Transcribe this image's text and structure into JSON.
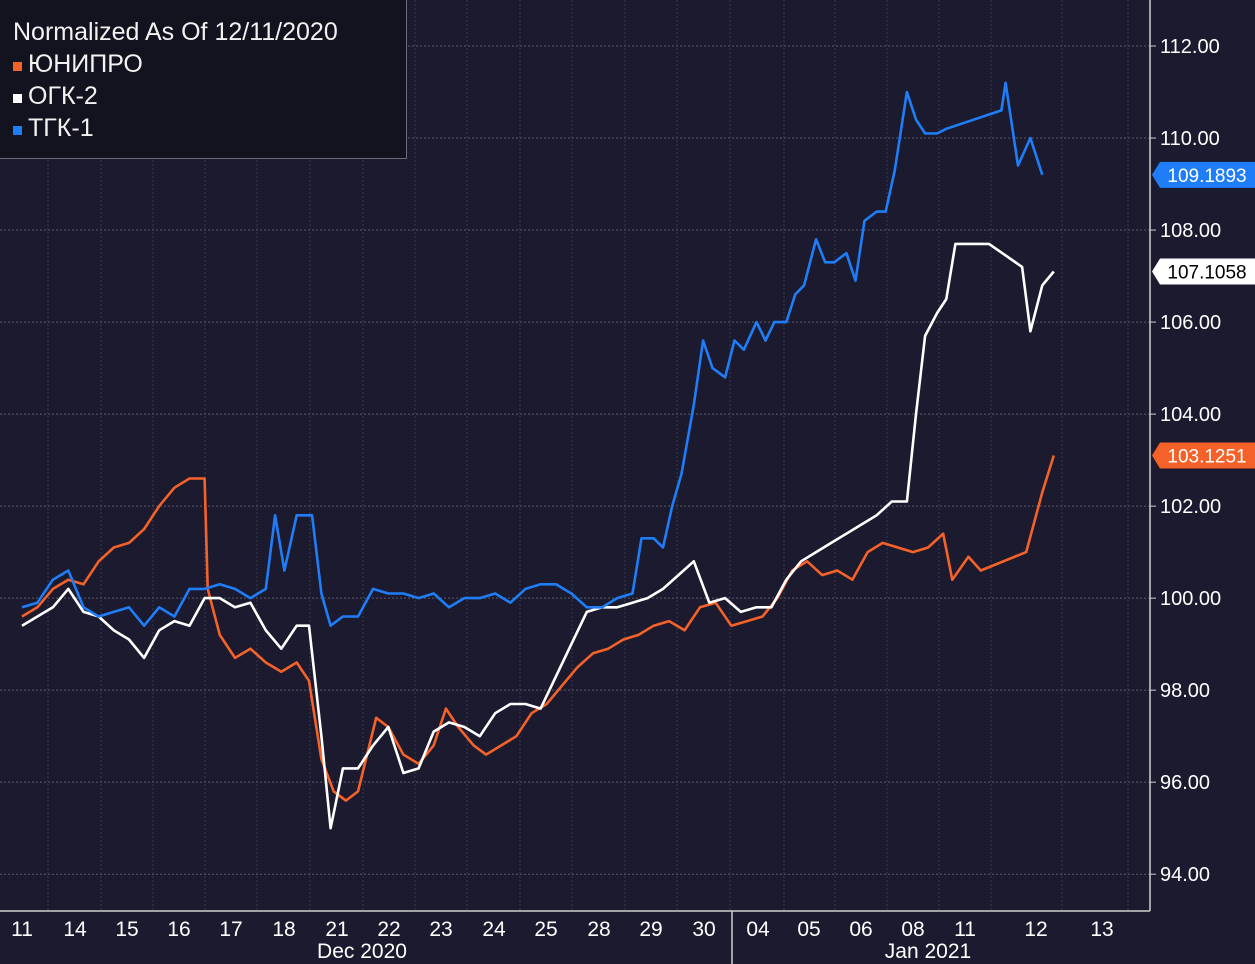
{
  "chart_data": {
    "type": "line",
    "title": "Normalized As Of 12/11/2020",
    "ylim": [
      93.2,
      113.0
    ],
    "yticks": [
      "94.00",
      "96.00",
      "98.00",
      "100.00",
      "102.00",
      "104.00",
      "106.00",
      "108.00",
      "110.00",
      "112.00"
    ],
    "ytick_values": [
      94,
      96,
      98,
      100,
      102,
      104,
      106,
      108,
      110,
      112
    ],
    "xticks": [
      "11",
      "14",
      "15",
      "16",
      "17",
      "18",
      "21",
      "22",
      "23",
      "24",
      "25",
      "28",
      "29",
      "30",
      "04",
      "05",
      "06",
      "08",
      "11",
      "12",
      "13"
    ],
    "month_labels": [
      "Dec 2020",
      "Jan 2021"
    ],
    "grid": true,
    "legend_position": "top-left",
    "series": [
      {
        "name": "ЮНИПРО",
        "color": "#f4622a",
        "last_label": "103.1251",
        "values": [
          [
            0,
            99.6
          ],
          [
            0.5,
            99.8
          ],
          [
            1,
            100.2
          ],
          [
            1.5,
            100.4
          ],
          [
            2,
            100.3
          ],
          [
            2.5,
            100.8
          ],
          [
            3,
            101.1
          ],
          [
            3.5,
            101.2
          ],
          [
            4,
            101.5
          ],
          [
            4.5,
            102.0
          ],
          [
            5,
            102.4
          ],
          [
            5.5,
            102.6
          ],
          [
            6,
            102.6
          ],
          [
            6.1,
            100.2
          ],
          [
            6.5,
            99.2
          ],
          [
            7,
            98.7
          ],
          [
            7.5,
            98.9
          ],
          [
            8,
            98.6
          ],
          [
            8.5,
            98.4
          ],
          [
            9,
            98.6
          ],
          [
            9.4,
            98.2
          ],
          [
            9.8,
            96.5
          ],
          [
            10.2,
            95.8
          ],
          [
            10.6,
            95.6
          ],
          [
            11,
            95.8
          ],
          [
            11.3,
            96.6
          ],
          [
            11.6,
            97.4
          ],
          [
            12,
            97.2
          ],
          [
            12.5,
            96.6
          ],
          [
            13,
            96.4
          ],
          [
            13.5,
            96.8
          ],
          [
            13.9,
            97.6
          ],
          [
            14.3,
            97.2
          ],
          [
            14.8,
            96.8
          ],
          [
            15.2,
            96.6
          ],
          [
            15.7,
            96.8
          ],
          [
            16.2,
            97.0
          ],
          [
            16.7,
            97.5
          ],
          [
            17.2,
            97.7
          ],
          [
            17.7,
            98.1
          ],
          [
            18.2,
            98.5
          ],
          [
            18.7,
            98.8
          ],
          [
            19.2,
            98.9
          ],
          [
            19.7,
            99.1
          ],
          [
            20.2,
            99.2
          ],
          [
            20.7,
            99.4
          ],
          [
            21.2,
            99.5
          ],
          [
            21.7,
            99.3
          ],
          [
            22.2,
            99.8
          ],
          [
            22.7,
            99.9
          ],
          [
            23.2,
            99.4
          ],
          [
            23.7,
            99.5
          ],
          [
            24.2,
            99.6
          ],
          [
            24.7,
            100.0
          ],
          [
            25.2,
            100.6
          ],
          [
            25.7,
            100.8
          ],
          [
            26.2,
            100.5
          ],
          [
            26.7,
            100.6
          ],
          [
            27.2,
            100.4
          ],
          [
            27.7,
            101.0
          ],
          [
            28.2,
            101.2
          ],
          [
            28.7,
            101.1
          ],
          [
            29.2,
            101.0
          ],
          [
            29.7,
            101.1
          ],
          [
            30.2,
            101.4
          ],
          [
            30.5,
            100.4
          ],
          [
            31,
            100.9
          ],
          [
            31.3,
            100.6
          ],
          [
            32.4,
            101.0
          ],
          [
            32.8,
            102.3
          ],
          [
            33.1,
            103.1
          ]
        ]
      },
      {
        "name": "ОГК-2",
        "color": "#ffffff",
        "last_label": "107.1058",
        "values": [
          [
            0,
            99.4
          ],
          [
            0.5,
            99.6
          ],
          [
            1,
            99.8
          ],
          [
            1.5,
            100.2
          ],
          [
            2,
            99.7
          ],
          [
            2.5,
            99.6
          ],
          [
            3,
            99.3
          ],
          [
            3.5,
            99.1
          ],
          [
            4,
            98.7
          ],
          [
            4.5,
            99.3
          ],
          [
            5,
            99.5
          ],
          [
            5.5,
            99.4
          ],
          [
            6,
            100.0
          ],
          [
            6.5,
            100.0
          ],
          [
            7,
            99.8
          ],
          [
            7.5,
            99.9
          ],
          [
            8,
            99.3
          ],
          [
            8.5,
            98.9
          ],
          [
            9,
            99.4
          ],
          [
            9.4,
            99.4
          ],
          [
            9.8,
            97.0
          ],
          [
            10.1,
            95.0
          ],
          [
            10.5,
            96.3
          ],
          [
            11,
            96.3
          ],
          [
            11.5,
            96.8
          ],
          [
            12,
            97.2
          ],
          [
            12.5,
            96.2
          ],
          [
            13,
            96.3
          ],
          [
            13.5,
            97.1
          ],
          [
            14,
            97.3
          ],
          [
            14.5,
            97.2
          ],
          [
            15,
            97.0
          ],
          [
            15.5,
            97.5
          ],
          [
            16,
            97.7
          ],
          [
            16.5,
            97.7
          ],
          [
            17,
            97.6
          ],
          [
            17.5,
            98.3
          ],
          [
            18,
            99.0
          ],
          [
            18.5,
            99.7
          ],
          [
            19,
            99.8
          ],
          [
            19.5,
            99.8
          ],
          [
            20,
            99.9
          ],
          [
            20.5,
            100.0
          ],
          [
            21,
            100.2
          ],
          [
            21.5,
            100.5
          ],
          [
            22,
            100.8
          ],
          [
            22.5,
            99.9
          ],
          [
            23,
            100.0
          ],
          [
            23.5,
            99.7
          ],
          [
            24,
            99.8
          ],
          [
            24.5,
            99.8
          ],
          [
            25,
            100.4
          ],
          [
            25.5,
            100.8
          ],
          [
            26,
            101.0
          ],
          [
            26.5,
            101.2
          ],
          [
            27,
            101.4
          ],
          [
            27.5,
            101.6
          ],
          [
            28,
            101.8
          ],
          [
            28.5,
            102.1
          ],
          [
            29,
            102.1
          ],
          [
            29.3,
            104.0
          ],
          [
            29.6,
            105.7
          ],
          [
            30,
            106.2
          ],
          [
            30.3,
            106.5
          ],
          [
            30.6,
            107.7
          ],
          [
            31.5,
            107.7
          ],
          [
            32.3,
            107.2
          ],
          [
            32.5,
            105.8
          ],
          [
            32.8,
            106.8
          ],
          [
            33.1,
            107.1
          ]
        ]
      },
      {
        "name": "ТГК-1",
        "color": "#1f7ef7",
        "last_label": "109.1893",
        "values": [
          [
            0,
            99.8
          ],
          [
            0.5,
            99.9
          ],
          [
            1,
            100.4
          ],
          [
            1.5,
            100.6
          ],
          [
            2,
            99.8
          ],
          [
            2.5,
            99.6
          ],
          [
            3,
            99.7
          ],
          [
            3.5,
            99.8
          ],
          [
            4,
            99.4
          ],
          [
            4.5,
            99.8
          ],
          [
            5,
            99.6
          ],
          [
            5.5,
            100.2
          ],
          [
            6,
            100.2
          ],
          [
            6.5,
            100.3
          ],
          [
            7,
            100.2
          ],
          [
            7.5,
            100.0
          ],
          [
            8,
            100.2
          ],
          [
            8.3,
            101.8
          ],
          [
            8.6,
            100.6
          ],
          [
            9,
            101.8
          ],
          [
            9.5,
            101.8
          ],
          [
            9.8,
            100.1
          ],
          [
            10.1,
            99.4
          ],
          [
            10.5,
            99.6
          ],
          [
            11,
            99.6
          ],
          [
            11.5,
            100.2
          ],
          [
            12,
            100.1
          ],
          [
            12.5,
            100.1
          ],
          [
            13,
            100.0
          ],
          [
            13.5,
            100.1
          ],
          [
            14,
            99.8
          ],
          [
            14.5,
            100.0
          ],
          [
            15,
            100.0
          ],
          [
            15.5,
            100.1
          ],
          [
            16,
            99.9
          ],
          [
            16.5,
            100.2
          ],
          [
            17,
            100.3
          ],
          [
            17.5,
            100.3
          ],
          [
            18,
            100.1
          ],
          [
            18.5,
            99.8
          ],
          [
            19,
            99.8
          ],
          [
            19.5,
            100.0
          ],
          [
            20,
            100.1
          ],
          [
            20.3,
            101.3
          ],
          [
            20.7,
            101.3
          ],
          [
            21,
            101.1
          ],
          [
            21.3,
            102.0
          ],
          [
            21.6,
            102.7
          ],
          [
            22,
            104.2
          ],
          [
            22.3,
            105.6
          ],
          [
            22.6,
            105.0
          ],
          [
            23,
            104.8
          ],
          [
            23.3,
            105.6
          ],
          [
            23.6,
            105.4
          ],
          [
            24,
            106.0
          ],
          [
            24.3,
            105.6
          ],
          [
            24.6,
            106.0
          ],
          [
            25,
            106.0
          ],
          [
            25.3,
            106.6
          ],
          [
            25.6,
            106.8
          ],
          [
            26,
            107.8
          ],
          [
            26.3,
            107.3
          ],
          [
            26.6,
            107.3
          ],
          [
            27,
            107.5
          ],
          [
            27.3,
            106.9
          ],
          [
            27.6,
            108.2
          ],
          [
            28,
            108.4
          ],
          [
            28.3,
            108.4
          ],
          [
            28.6,
            109.3
          ],
          [
            29,
            111.0
          ],
          [
            29.3,
            110.4
          ],
          [
            29.6,
            110.1
          ],
          [
            30,
            110.1
          ],
          [
            30.3,
            110.2
          ],
          [
            31.8,
            110.6
          ],
          [
            31.9,
            111.2
          ],
          [
            32.2,
            109.4
          ],
          [
            32.5,
            110.0
          ],
          [
            32.8,
            109.2
          ]
        ]
      }
    ]
  }
}
